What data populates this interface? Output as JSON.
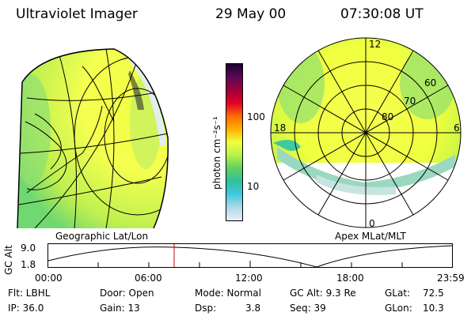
{
  "header": {
    "title": "Ultraviolet Imager",
    "date": "29 May 00",
    "time": "07:30:08 UT"
  },
  "colorbar": {
    "label": "photon cm⁻²s⁻¹",
    "ticks": [
      "100",
      "10"
    ],
    "colors": [
      "#1a0033",
      "#5a0a55",
      "#a0003a",
      "#e0002a",
      "#ff6a00",
      "#ffb000",
      "#f0ff40",
      "#b8f048",
      "#60d060",
      "#30c0a0",
      "#40c8e0",
      "#b0d8e8",
      "#e6f0f5"
    ]
  },
  "left_map": {
    "caption": "Geographic Lat/Lon"
  },
  "right_map": {
    "caption": "Apex MLat/MLT",
    "mlt_labels": {
      "top": "12",
      "left": "18",
      "right": "6",
      "bottom": "0"
    },
    "lat_labels": [
      "60",
      "70",
      "80"
    ]
  },
  "altitude_plot": {
    "ylabel": "GC Alt",
    "y_ticks": [
      "9.0",
      "1.8"
    ],
    "x_ticks": [
      "00:00",
      "06:00",
      "12:00",
      "18:00",
      "23:59"
    ],
    "marker_color": "#cc0000"
  },
  "info": {
    "flt": "Flt: LBHL",
    "door": "Door: Open",
    "mode": "Mode: Normal",
    "gcalt": "GC Alt: 9.3 Re",
    "glat_label": "GLat:",
    "glat_value": "72.5",
    "ip": "IP: 36.0",
    "gain": "Gain: 13",
    "dsp_label": "Dsp:",
    "dsp_value": "3.8",
    "seq": "Seq: 39",
    "glon_label": "GLon:",
    "glon_value": "10.3"
  }
}
